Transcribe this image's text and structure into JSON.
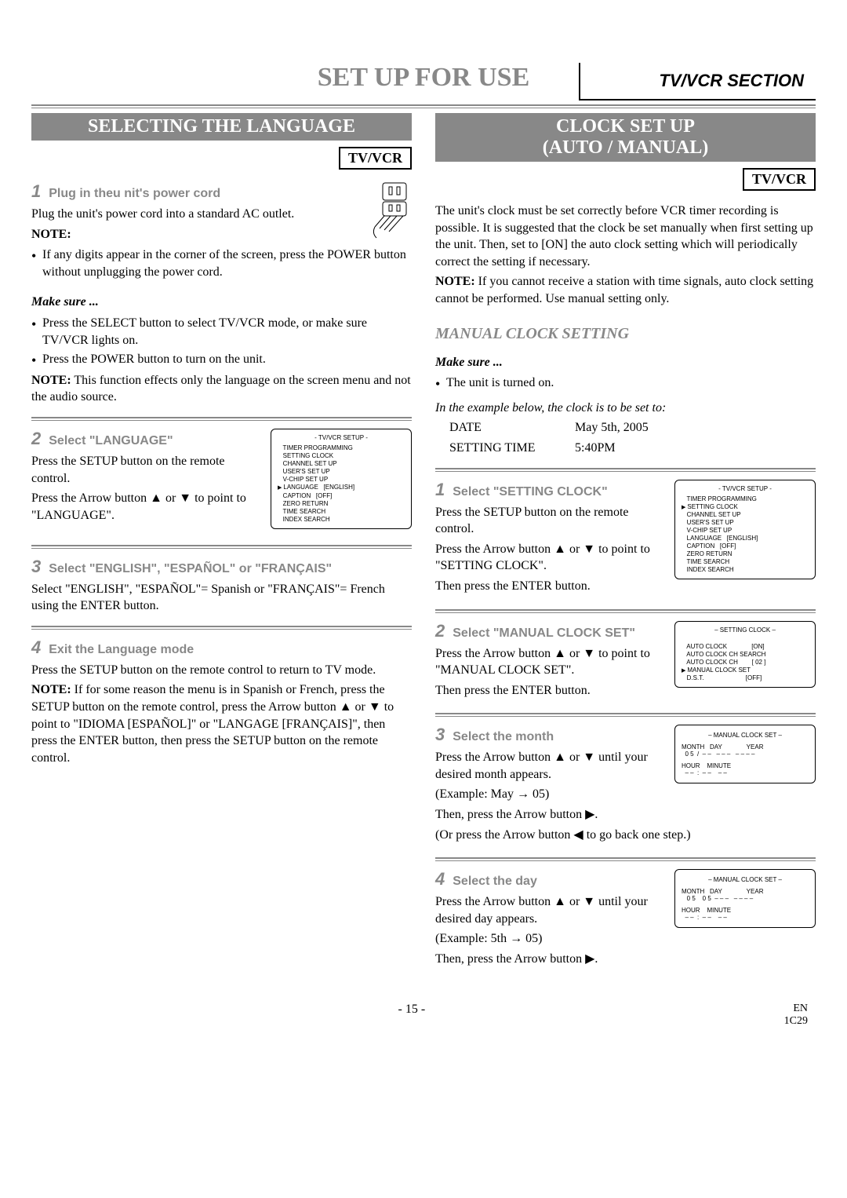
{
  "corner": "TV/VCR SECTION",
  "mainTitle": "SET UP FOR USE",
  "left": {
    "header": "SELECTING THE LANGUAGE",
    "badge": "TV/VCR",
    "step1": {
      "num": "1",
      "title": "Plug in theu nit's power cord"
    },
    "p1": "Plug the unit's power cord into a standard AC outlet.",
    "noteLabel": "NOTE:",
    "bullet1": "If any digits appear in the corner of the screen, press the POWER button without unplugging the power cord.",
    "makeSure": "Make sure ...",
    "ms1": "Press the SELECT button to select TV/VCR mode, or make sure TV/VCR lights on.",
    "ms2": "Press the POWER button to turn on the unit.",
    "note2a": "NOTE:",
    "note2b": " This function effects only the language on the screen menu and not the audio source.",
    "step2": {
      "num": "2",
      "title": "Select \"LANGUAGE\""
    },
    "p2a": "Press the SETUP button on the remote control.",
    "p2b": "Press the Arrow button ▲ or ▼ to point to \"LANGUAGE\".",
    "screen1": {
      "title": "- TV/VCR SETUP -",
      "lines": [
        "TIMER PROGRAMMING",
        "SETTING CLOCK",
        "CHANNEL SET UP",
        "USER'S SET UP",
        "V-CHIP SET UP",
        "LANGUAGE   [ENGLISH]",
        "CAPTION   [OFF]",
        "ZERO RETURN",
        "TIME SEARCH",
        "INDEX SEARCH"
      ],
      "pointerIndex": 5
    },
    "step3": {
      "num": "3",
      "title": "Select \"ENGLISH\", \"ESPAÑOL\" or \"FRANÇAIS\""
    },
    "p3": "Select \"ENGLISH\", \"ESPAÑOL\"= Spanish or \"FRANÇAIS\"= French using the ENTER button.",
    "step4": {
      "num": "4",
      "title": "Exit the Language mode"
    },
    "p4a": "Press the SETUP button on the remote control to return to TV mode.",
    "p4bLabel": "NOTE:",
    "p4b": " If for some reason the menu is in Spanish or French, press the SETUP button on the remote control, press the Arrow button ▲ or ▼ to point to \"IDIOMA [ESPAÑOL]\" or \"LANGAGE [FRANÇAIS]\", then press the ENTER button, then press the SETUP button on the remote control."
  },
  "right": {
    "header1": "CLOCK SET UP",
    "header2": "(AUTO / MANUAL)",
    "badge": "TV/VCR",
    "intro": "The unit's clock must be set correctly before VCR timer recording is possible. It is suggested that the clock be set manually when first setting up the unit. Then, set to [ON] the auto clock setting which will periodically correct the setting if necessary.",
    "introNoteLabel": "NOTE:",
    "introNote": " If you cannot receive a station with time signals, auto clock setting cannot be performed. Use manual setting only.",
    "manualHeader": "MANUAL CLOCK SETTING",
    "makeSure": "Make sure ...",
    "ms1": "The unit is turned on.",
    "exampleIntro": "In the example below, the clock is to be set to:",
    "dateLabel": "DATE",
    "dateVal": "May 5th, 2005",
    "timeLabel": "SETTING TIME",
    "timeVal": "5:40PM",
    "step1": {
      "num": "1",
      "title": "Select \"SETTING CLOCK\""
    },
    "p1a": "Press the SETUP button on the remote control.",
    "p1b": "Press the Arrow button ▲ or ▼ to point to \"SETTING CLOCK\".",
    "p1c": "Then press the ENTER button.",
    "screen1": {
      "title": "- TV/VCR SETUP -",
      "lines": [
        "TIMER PROGRAMMING",
        "SETTING CLOCK",
        "CHANNEL SET UP",
        "USER'S SET UP",
        "V-CHIP SET UP",
        "LANGUAGE   [ENGLISH]",
        "CAPTION   [OFF]",
        "ZERO RETURN",
        "TIME SEARCH",
        "INDEX SEARCH"
      ],
      "pointerIndex": 1
    },
    "step2": {
      "num": "2",
      "title": "Select \"MANUAL CLOCK SET\""
    },
    "p2a": "Press the Arrow button ▲ or ▼ to point to \"MANUAL CLOCK SET\".",
    "p2b": "Then press the ENTER button.",
    "screen2": {
      "title": "– SETTING CLOCK –",
      "lines": [
        "AUTO CLOCK              [ON]",
        "AUTO CLOCK CH SEARCH",
        "AUTO CLOCK CH        [ 02 ]",
        "MANUAL CLOCK SET",
        "D.S.T.                        [OFF]"
      ],
      "pointerIndex": 3
    },
    "step3": {
      "num": "3",
      "title": "Select the month"
    },
    "p3a": "Press the Arrow button ▲ or ▼ until your desired month appears.",
    "p3b": "(Example: May → 05)",
    "p3c": "Then, press the Arrow button ▶.",
    "p3d": "(Or press the Arrow button ◀ to go back one step.)",
    "screen3": {
      "title": "– MANUAL CLOCK SET –",
      "head1": "MONTH   DAY              YEAR",
      "row1": "  0 5  /  – –   – – –   – – – –",
      "head2": "HOUR    MINUTE",
      "row2": "  – –  :  – –    – –"
    },
    "step4": {
      "num": "4",
      "title": "Select the day"
    },
    "p4a": "Press the Arrow button ▲ or ▼ until your desired day appears.",
    "p4b": "(Example: 5th → 05)",
    "p4c": "Then, press the Arrow button ▶.",
    "screen4": {
      "title": "– MANUAL CLOCK SET –",
      "head1": "MONTH   DAY              YEAR",
      "row1": "   0 5    0 5  – – –   – – – –",
      "head2": "HOUR    MINUTE",
      "row2": "  – –  :  – –    – –"
    }
  },
  "footer": {
    "page": "- 15 -",
    "lang": "EN",
    "code": "1C29"
  }
}
